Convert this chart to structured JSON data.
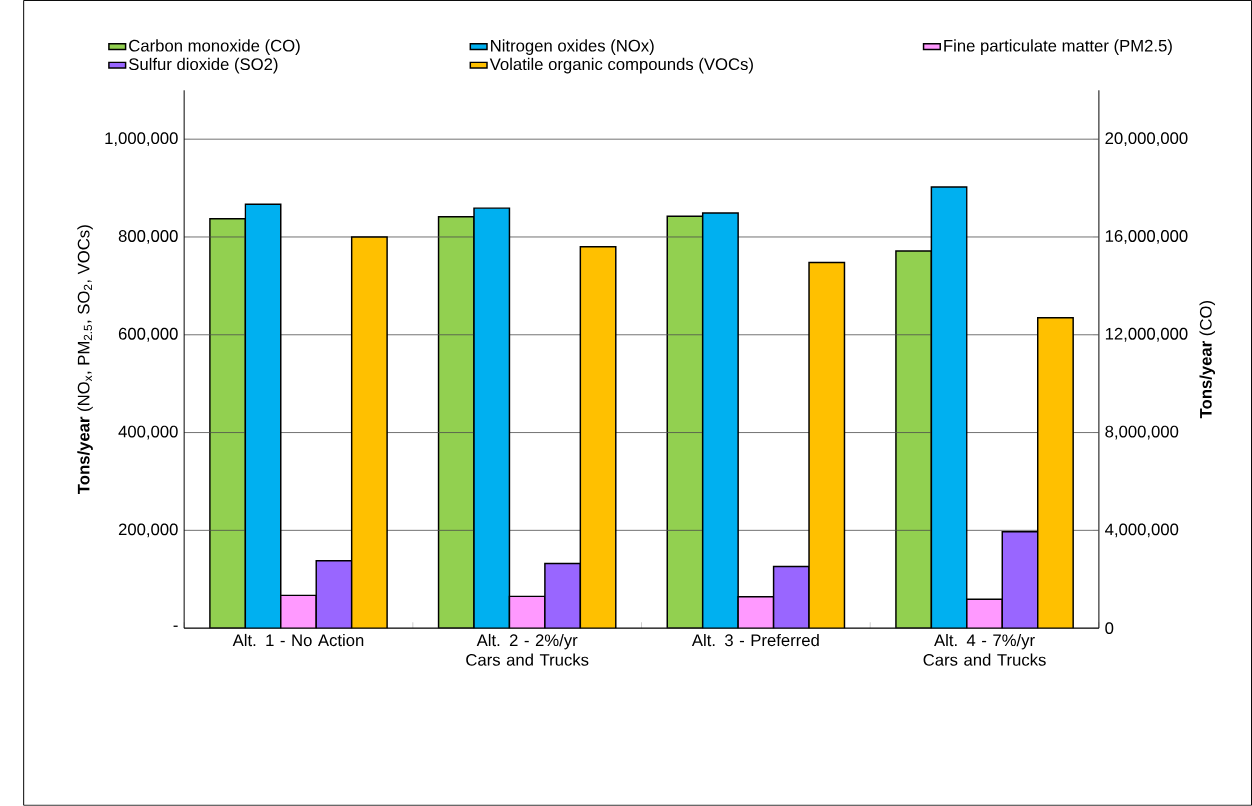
{
  "chart_data": {
    "type": "bar",
    "categories": [
      "Alt. 1 - No Action",
      "Alt. 2 - 2%/yr Cars and Trucks",
      "Alt. 3 - Preferred",
      "Alt. 4 - 7%/yr Cars and Trucks"
    ],
    "series": [
      {
        "name": "Carbon monoxide (CO)",
        "color": "#92d050",
        "axis": "y2",
        "values": [
          16750000,
          16830000,
          16850000,
          15430000
        ]
      },
      {
        "name": "Nitrogen oxides (NOx)",
        "color": "#00b0f0",
        "values": [
          867000,
          859000,
          849000,
          902000
        ]
      },
      {
        "name": "Fine particulate matter (PM2.5)",
        "color": "#ff99ff",
        "values": [
          67000,
          65000,
          64000,
          59000
        ]
      },
      {
        "name": "Sulfur dioxide (SO2)",
        "color": "#9966ff",
        "values": [
          138000,
          132000,
          126000,
          197000
        ]
      },
      {
        "name": "Volatile organic compounds (VOCs)",
        "color": "#ffc000",
        "values": [
          800000,
          780000,
          748000,
          635000
        ]
      }
    ],
    "ylabel": "**Tons/year** (NO$_{x}$, PM$_{2.5}$, SO$_{2}$, VOCs)",
    "y2label": "**Tons/year** (CO)",
    "ylim": [
      0,
      1100000
    ],
    "yticks": [
      {
        "value": 0,
        "label": "-"
      },
      {
        "value": 200000,
        "label": "200,000"
      },
      {
        "value": 400000,
        "label": "400,000"
      },
      {
        "value": 600000,
        "label": "600,000"
      },
      {
        "value": 800000,
        "label": "800,000"
      },
      {
        "value": 1000000,
        "label": "1,000,000"
      }
    ],
    "y2lim": [
      0,
      22000000
    ],
    "y2ticks": [
      0,
      {
        "value": 4000000,
        "label": "4,000,000"
      },
      {
        "value": 8000000,
        "label": "8,000,000"
      },
      {
        "value": 12000000,
        "label": "12,000,000"
      },
      {
        "value": 16000000,
        "label": "16,000,000"
      },
      {
        "value": 20000000,
        "label": "20,000,000"
      }
    ],
    "grid": "y",
    "legend": "top"
  }
}
